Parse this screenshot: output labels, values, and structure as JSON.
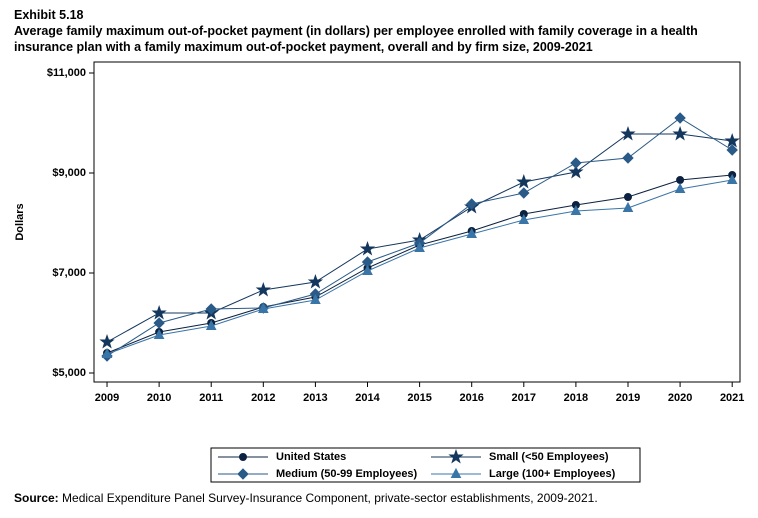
{
  "chart_data": {
    "type": "line",
    "exhibit": "Exhibit 5.18",
    "title": "Average family maximum out-of-pocket payment (in dollars) per employee enrolled with family coverage in a health insurance plan with a family maximum out-of-pocket payment, overall and by firm size, 2009-2021",
    "y_label": "Dollars",
    "source_label": "Source:",
    "source": "Medical Expenditure Panel Survey-Insurance Component, private-sector establishments, 2009-2021.",
    "x": [
      2009,
      2010,
      2011,
      2012,
      2013,
      2014,
      2015,
      2016,
      2017,
      2018,
      2019,
      2020,
      2021
    ],
    "xlim": [
      2008.75,
      2021.15
    ],
    "xticks": [
      2009,
      2010,
      2011,
      2012,
      2013,
      2014,
      2015,
      2016,
      2017,
      2018,
      2019,
      2020,
      2021
    ],
    "ylim": [
      4820,
      11220
    ],
    "yticks": [
      {
        "value": 5000,
        "label": "$5,000"
      },
      {
        "value": 7000,
        "label": "$7,000"
      },
      {
        "value": 9000,
        "label": "$9,000"
      },
      {
        "value": 11000,
        "label": "$11,000"
      }
    ],
    "grid": false,
    "series": [
      {
        "name": "United States",
        "color": "#0d2240",
        "marker": "circle",
        "values": [
          5400,
          5820,
          6000,
          6320,
          6520,
          7100,
          7560,
          7840,
          8180,
          8360,
          8520,
          8860,
          8960
        ]
      },
      {
        "name": "Small (<50 Employees)",
        "color": "#14375e",
        "marker": "star",
        "values": [
          5620,
          6200,
          6200,
          6660,
          6820,
          7480,
          7660,
          8320,
          8820,
          9020,
          9780,
          9780,
          9640
        ]
      },
      {
        "name": "Medium (50-99 Employees)",
        "color": "#2a5a87",
        "marker": "diamond",
        "values": [
          5340,
          6000,
          6280,
          6300,
          6580,
          7220,
          7600,
          8380,
          8600,
          9200,
          9300,
          10100,
          9460
        ]
      },
      {
        "name": "Large (100+ Employees)",
        "color": "#3a75a8",
        "marker": "triangle",
        "values": [
          5380,
          5760,
          5940,
          6280,
          6460,
          7040,
          7500,
          7780,
          8060,
          8240,
          8300,
          8680,
          8860
        ]
      }
    ]
  }
}
